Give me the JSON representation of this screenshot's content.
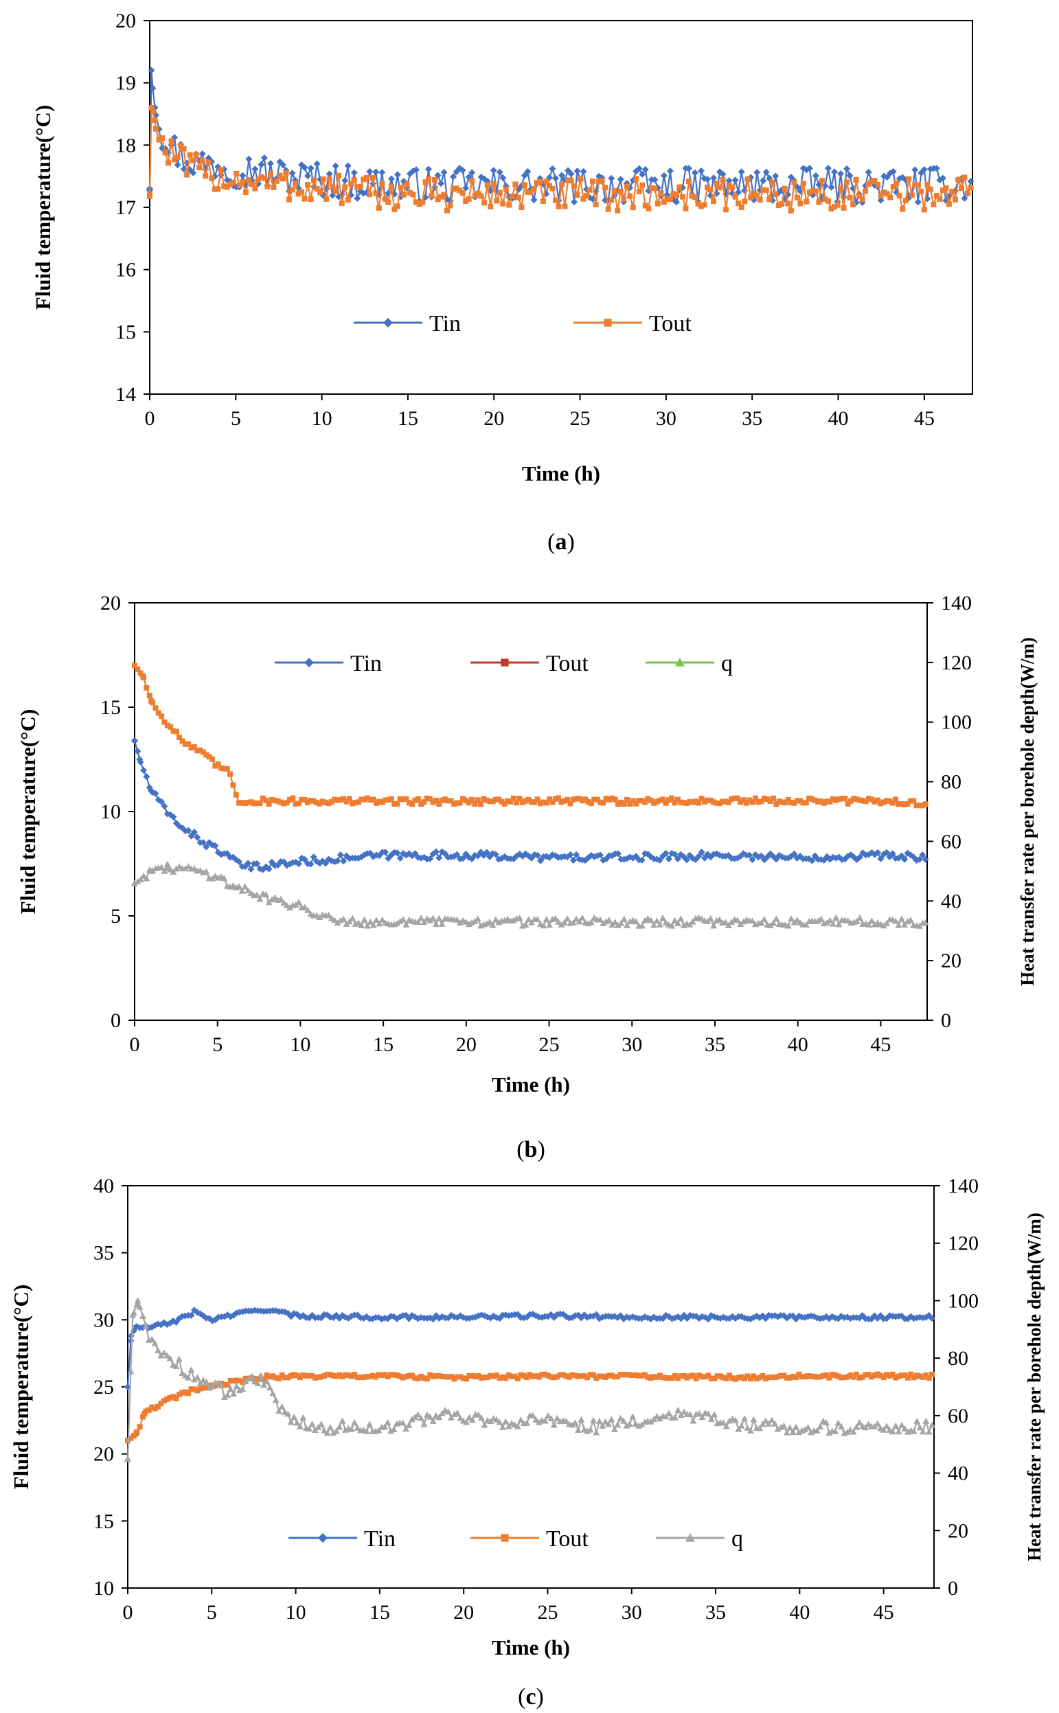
{
  "chart_data": [
    {
      "panel": "a",
      "type": "line",
      "xlabel": "Time (h)",
      "ylabel": "Fluid temperature(°C)",
      "xlim": [
        0,
        47.8
      ],
      "ylim": [
        14,
        20
      ],
      "xticks": [
        0,
        5,
        10,
        15,
        20,
        25,
        30,
        35,
        40,
        45
      ],
      "yticks": [
        14,
        15,
        16,
        17,
        18,
        19,
        20
      ],
      "panel_label": "(a)",
      "legend_position": "center",
      "series": [
        {
          "name": "Tin",
          "axis": "left",
          "color": "#4472C4",
          "marker": "diamond",
          "x": [
            0,
            0.1,
            0.3,
            0.5,
            1,
            1.5,
            2,
            3,
            4,
            5,
            6,
            8,
            10,
            12,
            15,
            18,
            20,
            25,
            30,
            35,
            40,
            45,
            47.8
          ],
          "y": [
            17.3,
            19.2,
            18.6,
            18.3,
            18.1,
            17.9,
            17.8,
            17.7,
            17.7,
            17.6,
            17.6,
            17.5,
            17.45,
            17.4,
            17.35,
            17.35,
            17.35,
            17.35,
            17.35,
            17.35,
            17.35,
            17.35,
            17.4
          ],
          "noise": 0.28
        },
        {
          "name": "Tout",
          "axis": "left",
          "color": "#ED7D31",
          "marker": "square",
          "x": [
            0,
            0.1,
            0.3,
            0.5,
            1,
            1.5,
            2,
            3,
            4,
            5,
            6,
            8,
            10,
            12,
            15,
            18,
            20,
            25,
            30,
            35,
            40,
            45,
            47.8
          ],
          "y": [
            17.2,
            18.6,
            18.4,
            18.1,
            17.9,
            17.8,
            17.7,
            17.55,
            17.5,
            17.45,
            17.4,
            17.35,
            17.3,
            17.25,
            17.2,
            17.2,
            17.2,
            17.2,
            17.2,
            17.2,
            17.2,
            17.2,
            17.25
          ],
          "noise": 0.26
        }
      ]
    },
    {
      "panel": "b",
      "type": "line",
      "xlabel": "Time (h)",
      "ylabel": "Fluid temperature(°C)",
      "y2label": "Heat transfer rate per borehole depth(W/m)",
      "xlim": [
        0,
        47.8
      ],
      "ylim": [
        0,
        20
      ],
      "y2lim": [
        0,
        140
      ],
      "xticks": [
        0,
        5,
        10,
        15,
        20,
        25,
        30,
        35,
        40,
        45
      ],
      "yticks": [
        0,
        5,
        10,
        15,
        20
      ],
      "y2ticks": [
        0,
        20,
        40,
        60,
        80,
        100,
        120,
        140
      ],
      "panel_label": "(b)",
      "legend_position": "top",
      "series": [
        {
          "name": "Tin",
          "axis": "left",
          "color": "#4472C4",
          "marker": "diamond",
          "x": [
            0,
            0.3,
            1,
            2,
            3,
            4,
            5,
            6,
            7,
            8,
            10,
            15,
            20,
            25,
            30,
            35,
            40,
            45,
            47.8
          ],
          "y": [
            13.4,
            12.5,
            11,
            9.9,
            9.2,
            8.6,
            8.2,
            7.6,
            7.3,
            7.4,
            7.6,
            7.9,
            7.9,
            7.8,
            7.8,
            7.9,
            7.8,
            7.9,
            7.8
          ],
          "noise": 0.18
        },
        {
          "name": "Tout",
          "axis": "left",
          "color": "#ED7D31",
          "legend_color": "#C0392B",
          "marker": "square",
          "x": [
            0,
            0.5,
            1,
            2,
            3,
            4,
            5,
            5.8,
            6.2,
            8,
            10,
            15,
            20,
            25,
            30,
            35,
            40,
            45,
            47.8
          ],
          "y": [
            17,
            16.5,
            15.3,
            14.2,
            13.3,
            12.8,
            12.2,
            11.8,
            10.5,
            10.5,
            10.5,
            10.5,
            10.5,
            10.5,
            10.5,
            10.5,
            10.5,
            10.5,
            10.4
          ],
          "noise": 0.15
        },
        {
          "name": "q",
          "axis": "right",
          "color": "#A5A5A5",
          "legend_color": "#70C94A",
          "marker": "triangle",
          "x": [
            0,
            1,
            2,
            3,
            4,
            5,
            6,
            8,
            10,
            12,
            14,
            16,
            20,
            25,
            30,
            35,
            40,
            45,
            47.8
          ],
          "y": [
            46,
            50,
            51,
            51,
            50,
            48,
            45,
            41,
            38,
            34,
            33,
            33,
            33,
            33,
            33,
            33,
            33,
            33,
            33
          ],
          "noise": 1.4
        }
      ]
    },
    {
      "panel": "c",
      "type": "line",
      "xlabel": "Time (h)",
      "ylabel": "Fluid temperature(°C)",
      "y2label": "Heat transfer rate per borehole depth(W/m)",
      "xlim": [
        0,
        48
      ],
      "ylim": [
        10,
        40
      ],
      "y2lim": [
        0,
        140
      ],
      "xticks": [
        0,
        5,
        10,
        15,
        20,
        25,
        30,
        35,
        40,
        45
      ],
      "yticks": [
        10,
        15,
        20,
        25,
        30,
        35,
        40
      ],
      "y2ticks": [
        0,
        20,
        40,
        60,
        80,
        100,
        120,
        140
      ],
      "panel_label": "(c)",
      "legend_position": "bottom",
      "series": [
        {
          "name": "Tin",
          "axis": "left",
          "color": "#4472C4",
          "marker": "diamond",
          "x": [
            0,
            0.2,
            0.5,
            1,
            2,
            3,
            4,
            5,
            6,
            8,
            10,
            15,
            20,
            25,
            30,
            35,
            40,
            45,
            48
          ],
          "y": [
            25,
            28.8,
            29.5,
            29.4,
            29.6,
            30,
            30.6,
            30,
            30.3,
            30.8,
            30.3,
            30.2,
            30.2,
            30.3,
            30.2,
            30.2,
            30.2,
            30.2,
            30.2
          ],
          "noise": 0.15
        },
        {
          "name": "Tout",
          "axis": "left",
          "color": "#ED7D31",
          "marker": "square",
          "x": [
            0,
            0.5,
            1,
            2,
            3,
            4,
            5,
            6,
            8,
            10,
            15,
            20,
            25,
            30,
            35,
            40,
            45,
            48
          ],
          "y": [
            21,
            21.5,
            23,
            23.8,
            24.3,
            24.8,
            25,
            25.3,
            25.7,
            25.8,
            25.8,
            25.7,
            25.8,
            25.8,
            25.7,
            25.8,
            25.8,
            25.8
          ],
          "noise": 0.15
        },
        {
          "name": "q",
          "axis": "right",
          "color": "#A5A5A5",
          "marker": "triangle",
          "x": [
            0,
            0.3,
            0.6,
            1,
            2,
            3,
            4,
            5,
            6,
            7,
            8,
            9,
            10,
            12,
            15,
            19,
            22,
            25,
            28,
            33,
            36,
            40,
            45,
            48
          ],
          "y": [
            45,
            95,
            100,
            90,
            82,
            78,
            73,
            70,
            68,
            70,
            74,
            62,
            58,
            56,
            56,
            60,
            58,
            58,
            56,
            61,
            57,
            56,
            56,
            56
          ],
          "noise": 2.2
        }
      ]
    }
  ]
}
